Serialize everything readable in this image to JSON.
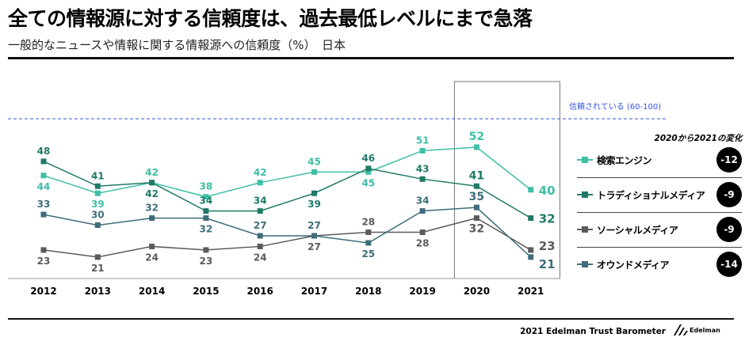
{
  "title": "全ての情報源に対する信頼度は、過去最低レベルにまで急落",
  "subtitle": "一般的なニュースや情報に関する情報源への信頼度（%）　日本",
  "chart_data": {
    "type": "line",
    "categories": [
      "2012",
      "2013",
      "2014",
      "2015",
      "2016",
      "2017",
      "2018",
      "2019",
      "2020",
      "2021"
    ],
    "series": [
      {
        "name": "検索エンジン",
        "color": "#3dbfa6",
        "values": [
          44,
          39,
          42,
          38,
          42,
          45,
          45,
          51,
          52,
          40
        ]
      },
      {
        "name": "トラディショナルメディア",
        "color": "#1f7a67",
        "values": [
          48,
          41,
          42,
          34,
          34,
          39,
          46,
          43,
          41,
          32
        ]
      },
      {
        "name": "ソーシャルメディア",
        "color": "#5b5b5b",
        "values": [
          23,
          21,
          24,
          23,
          24,
          27,
          28,
          28,
          32,
          23
        ]
      },
      {
        "name": "オウンドメディア",
        "color": "#3f6c7b",
        "values": [
          33,
          30,
          32,
          32,
          27,
          27,
          25,
          34,
          35,
          21
        ]
      }
    ],
    "reference_line": {
      "value": 60,
      "label": "信頼されている (60-100)",
      "color": "#3355dd"
    },
    "highlight_category": "2020",
    "grid": false,
    "legend_placement": "right"
  },
  "legend": {
    "header": "2020から2021の変化",
    "changes": [
      "-12",
      "-9",
      "-9",
      "-14"
    ]
  },
  "footer": "2021 Edelman Trust Barometer",
  "logo": "Edelman"
}
